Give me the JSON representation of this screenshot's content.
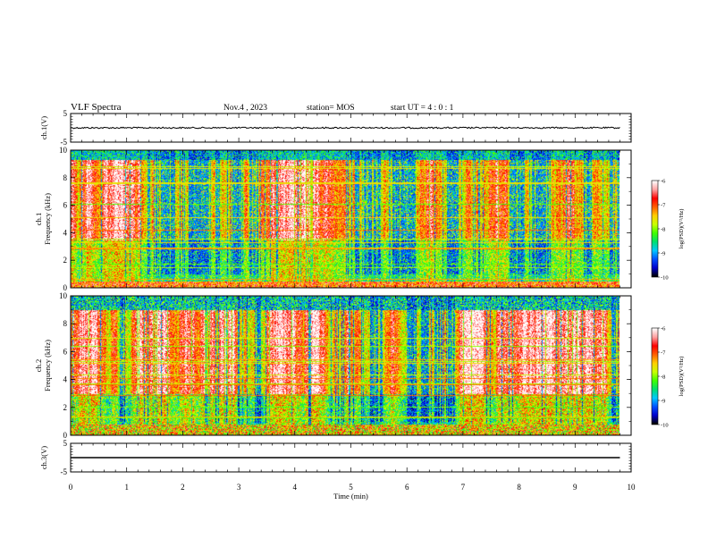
{
  "header": {
    "title": "VLF Spectra",
    "date": "Nov.4 , 2023",
    "station": "station= MOS",
    "start_ut": "start UT = 4 : 0 : 1"
  },
  "colors": {
    "scale": [
      "#000000",
      "#0000cc",
      "#0050ff",
      "#00c8ff",
      "#00e070",
      "#40ff00",
      "#c8ff00",
      "#ffd000",
      "#ff6000",
      "#ff0000",
      "#ffa0a0",
      "#ffffff"
    ]
  },
  "chart_data": [
    {
      "type": "line",
      "name": "ch1-waveform",
      "ylabel": "ch.1(V)",
      "ylim": [
        -5,
        5
      ],
      "yticks": [
        "5",
        "-5"
      ],
      "x": [
        0,
        9.8
      ],
      "y": [
        0,
        0
      ]
    },
    {
      "type": "heatmap",
      "name": "ch1-spectrogram",
      "ylabel": "ch.1\nFrequency (kHz)",
      "ylim": [
        0,
        10
      ],
      "yticks": [
        "0",
        "2",
        "4",
        "6",
        "8",
        "10"
      ],
      "xlim": [
        0,
        10
      ],
      "data_extent_min": 9.8,
      "colorbar": {
        "label": "log(PSD)(V²/Hz)",
        "min": -10,
        "max": -6,
        "ticks": [
          "-6",
          "-7",
          "-8",
          "-9",
          "-10"
        ]
      }
    },
    {
      "type": "heatmap",
      "name": "ch2-spectrogram",
      "ylabel": "ch.2\nFrequency (kHz)",
      "ylim": [
        0,
        10
      ],
      "yticks": [
        "0",
        "2",
        "4",
        "6",
        "8",
        "10"
      ],
      "xlim": [
        0,
        10
      ],
      "data_extent_min": 9.8,
      "colorbar": {
        "label": "log(PSD)(V²/Hz)",
        "min": -10,
        "max": -6,
        "ticks": [
          "-6",
          "-7",
          "-8",
          "-9",
          "-10"
        ]
      }
    },
    {
      "type": "line",
      "name": "ch3-waveform",
      "ylabel": "ch.3(V)",
      "ylim": [
        -5,
        5
      ],
      "yticks": [
        "5",
        "-5"
      ],
      "x": [
        0,
        9.8
      ],
      "y": [
        0,
        0
      ]
    }
  ],
  "xaxis": {
    "label": "Time (min)",
    "ticks": [
      "0",
      "1",
      "2",
      "3",
      "4",
      "5",
      "6",
      "7",
      "8",
      "9",
      "10"
    ],
    "xlim": [
      0,
      10
    ]
  }
}
